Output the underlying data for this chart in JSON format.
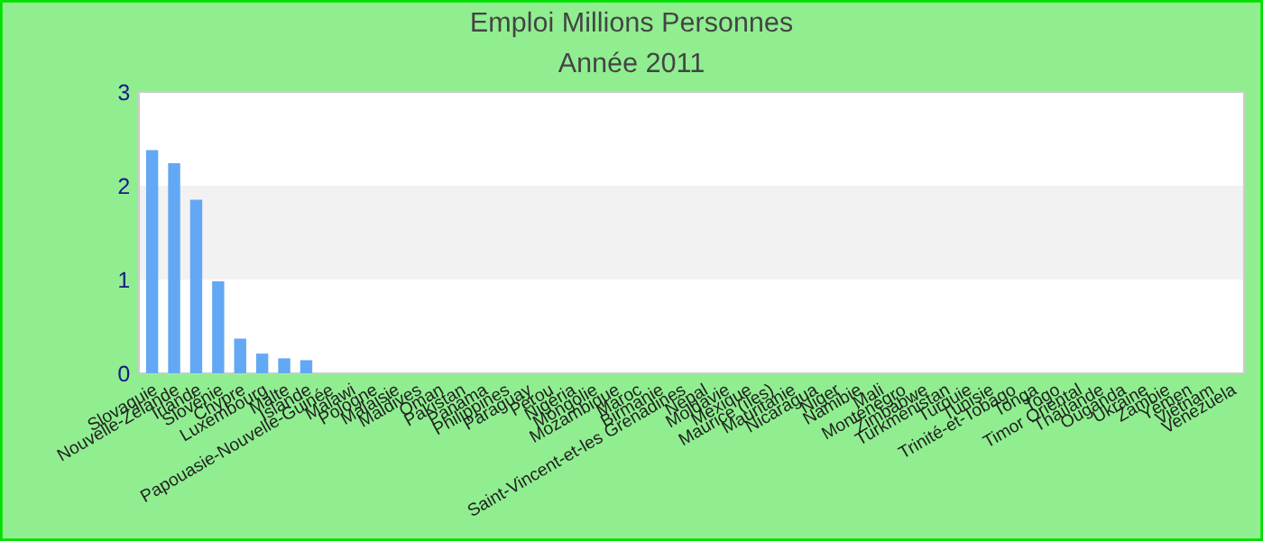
{
  "chart_data": {
    "type": "bar",
    "title": "Emploi Millions Personnes",
    "subtitle": "Année 2011",
    "categories": [
      "Slovaquie",
      "Nouvelle-Zélande",
      "Irlande",
      "Slovénie",
      "Chypre",
      "Luxembourg",
      "Malte",
      "Islande",
      "Papouasie-Nouvelle-Guinée",
      "Malawi",
      "Pologne",
      "Malaisie",
      "Maldives",
      "Oman",
      "Pakistan",
      "Panama",
      "Philippines",
      "Paraguay",
      "Pérou",
      "Nigéria",
      "Mongolie",
      "Mozambique",
      "Maroc",
      "Birmanie",
      "Saint-Vincent-et-les Grenadines",
      "Népal",
      "Moldavie",
      "Mexique",
      "Maurice (îles)",
      "Mauritanie",
      "Nicaragua",
      "Niger",
      "Namibie",
      "Mali",
      "Monténégro",
      "Zimbabwe",
      "Turkménistan",
      "Turquie",
      "Tunisie",
      "Trinité-et-Tobago",
      "Tonga",
      "Togo",
      "Timor Oriental",
      "Thaïlande",
      "Ouganda",
      "Ukraine",
      "Zambie",
      "Yémen",
      "Viêtnam",
      "Venezuela"
    ],
    "values": [
      2.38,
      2.24,
      1.85,
      0.98,
      0.37,
      0.21,
      0.16,
      0.14,
      0,
      0,
      0,
      0,
      0,
      0,
      0,
      0,
      0,
      0,
      0,
      0,
      0,
      0,
      0,
      0,
      0,
      0,
      0,
      0,
      0,
      0,
      0,
      0,
      0,
      0,
      0,
      0,
      0,
      0,
      0,
      0,
      0,
      0,
      0,
      0,
      0,
      0,
      0,
      0,
      0,
      0
    ],
    "color": "#63a8f5",
    "ylim": [
      0,
      3
    ],
    "yticks": [
      0,
      1,
      2,
      3
    ],
    "bands": [
      {
        "axis": "y",
        "from": 1,
        "to": 2,
        "color": "#f2f2f2"
      }
    ]
  }
}
